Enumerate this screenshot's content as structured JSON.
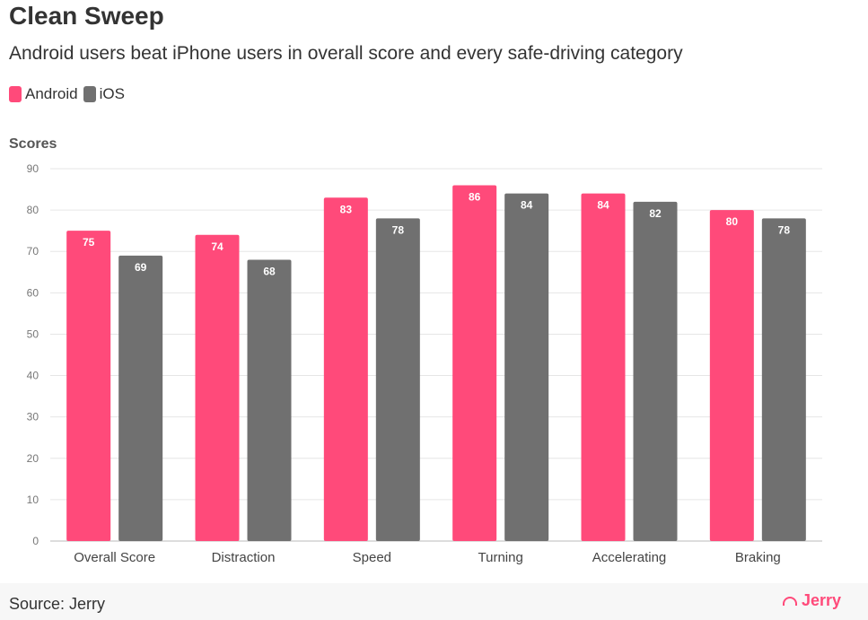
{
  "title": "Clean Sweep",
  "subtitle": "Android users beat iPhone users in overall score and every safe-driving category",
  "legend": [
    {
      "label": "Android",
      "color": "#ff4a7a"
    },
    {
      "label": "iOS",
      "color": "#707070"
    }
  ],
  "footer": {
    "source": "Source: Jerry",
    "logo": "Jerry"
  },
  "chart_data": {
    "type": "bar",
    "ylabel": "Scores",
    "xlabel": "",
    "ylim": [
      0,
      90
    ],
    "yticks": [
      0,
      10,
      20,
      30,
      40,
      50,
      60,
      70,
      80,
      90
    ],
    "grid": true,
    "categories": [
      "Overall Score",
      "Distraction",
      "Speed",
      "Turning",
      "Accelerating",
      "Braking"
    ],
    "series": [
      {
        "name": "Android",
        "color": "#ff4a7a",
        "values": [
          75,
          74,
          83,
          86,
          84,
          80
        ]
      },
      {
        "name": "iOS",
        "color": "#707070",
        "values": [
          69,
          68,
          78,
          84,
          82,
          78
        ]
      }
    ]
  }
}
